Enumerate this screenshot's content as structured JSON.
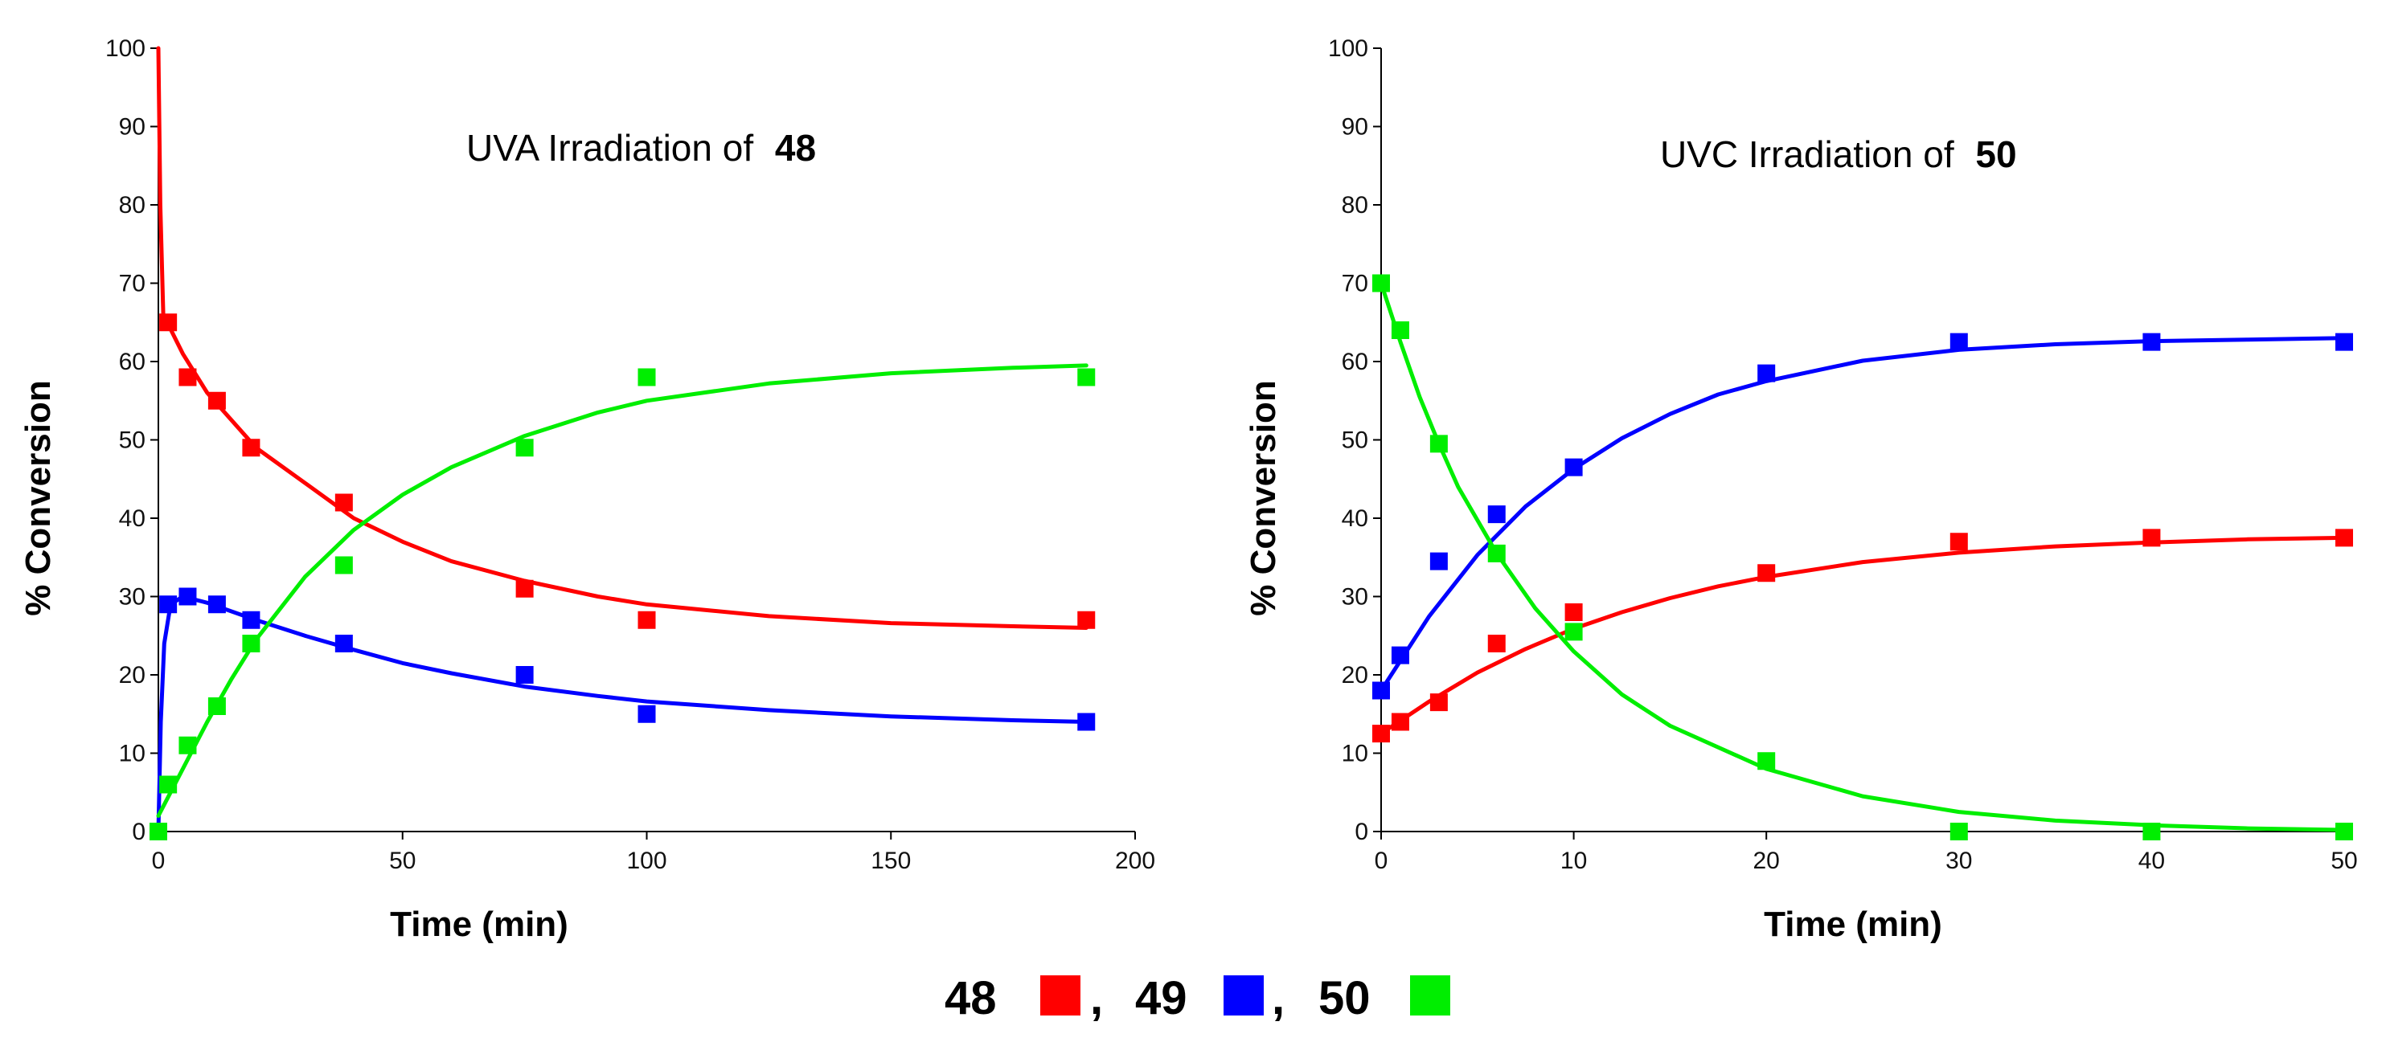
{
  "legend": {
    "items": [
      {
        "label": "48",
        "color": "#ff0000"
      },
      {
        "label": "49",
        "color": "#0000ff"
      },
      {
        "label": "50",
        "color": "#00ee00"
      }
    ],
    "separator": ","
  },
  "chart_data": [
    {
      "type": "scatter",
      "title_prefix": "UVA Irradiation of ",
      "title_bold": "48",
      "xlabel": "Time (min)",
      "ylabel": "% Conversion",
      "xlim": [
        0,
        200
      ],
      "ylim": [
        0,
        100
      ],
      "xticks": [
        0,
        50,
        100,
        150,
        200
      ],
      "yticks": [
        0,
        10,
        20,
        30,
        40,
        50,
        60,
        70,
        80,
        90,
        100
      ],
      "series": [
        {
          "name": "48",
          "color": "#ff0000",
          "points": [
            [
              2,
              65
            ],
            [
              6,
              58
            ],
            [
              12,
              55
            ],
            [
              19,
              49
            ],
            [
              38,
              42
            ],
            [
              75,
              31
            ],
            [
              100,
              27
            ],
            [
              190,
              27
            ]
          ],
          "fit": [
            [
              0,
              100
            ],
            [
              0.4,
              80
            ],
            [
              1,
              66
            ],
            [
              5,
              61
            ],
            [
              10,
              56
            ],
            [
              20,
              49
            ],
            [
              30,
              44.5
            ],
            [
              40,
              40
            ],
            [
              50,
              37
            ],
            [
              60,
              34.5
            ],
            [
              75,
              32
            ],
            [
              90,
              30
            ],
            [
              100,
              29
            ],
            [
              125,
              27.5
            ],
            [
              150,
              26.6
            ],
            [
              175,
              26.2
            ],
            [
              190,
              26
            ]
          ]
        },
        {
          "name": "49",
          "color": "#0000ff",
          "points": [
            [
              2,
              29
            ],
            [
              6,
              30
            ],
            [
              12,
              29
            ],
            [
              19,
              27
            ],
            [
              38,
              24
            ],
            [
              75,
              20
            ],
            [
              100,
              15
            ],
            [
              190,
              14
            ]
          ],
          "fit": [
            [
              0,
              0
            ],
            [
              0.5,
              14
            ],
            [
              1.2,
              24
            ],
            [
              2.5,
              29
            ],
            [
              5,
              30
            ],
            [
              10,
              29.2
            ],
            [
              20,
              27
            ],
            [
              30,
              25
            ],
            [
              40,
              23.2
            ],
            [
              50,
              21.5
            ],
            [
              60,
              20.2
            ],
            [
              75,
              18.5
            ],
            [
              90,
              17.3
            ],
            [
              100,
              16.6
            ],
            [
              125,
              15.5
            ],
            [
              150,
              14.7
            ],
            [
              175,
              14.2
            ],
            [
              190,
              14
            ]
          ]
        },
        {
          "name": "50",
          "color": "#00ee00",
          "points": [
            [
              0,
              0
            ],
            [
              2,
              6
            ],
            [
              6,
              11
            ],
            [
              12,
              16
            ],
            [
              19,
              24
            ],
            [
              38,
              34
            ],
            [
              75,
              49
            ],
            [
              100,
              58
            ],
            [
              190,
              58
            ]
          ],
          "fit": [
            [
              0,
              2
            ],
            [
              5,
              8
            ],
            [
              10,
              14
            ],
            [
              15,
              19.5
            ],
            [
              20,
              24.5
            ],
            [
              30,
              32.5
            ],
            [
              40,
              38.5
            ],
            [
              50,
              43
            ],
            [
              60,
              46.5
            ],
            [
              75,
              50.5
            ],
            [
              90,
              53.5
            ],
            [
              100,
              55
            ],
            [
              125,
              57.2
            ],
            [
              150,
              58.5
            ],
            [
              175,
              59.2
            ],
            [
              190,
              59.5
            ]
          ]
        }
      ]
    },
    {
      "type": "scatter",
      "title_prefix": "UVC Irradiation of ",
      "title_bold": "50",
      "xlabel": "Time (min)",
      "ylabel": "% Conversion",
      "xlim": [
        0,
        50
      ],
      "ylim": [
        0,
        100
      ],
      "xticks": [
        0,
        10,
        20,
        30,
        40,
        50
      ],
      "yticks": [
        0,
        10,
        20,
        30,
        40,
        50,
        60,
        70,
        80,
        90,
        100
      ],
      "series": [
        {
          "name": "48",
          "color": "#ff0000",
          "points": [
            [
              0,
              12.5
            ],
            [
              1,
              14
            ],
            [
              3,
              16.5
            ],
            [
              6,
              24
            ],
            [
              10,
              28
            ],
            [
              20,
              33
            ],
            [
              30,
              37
            ],
            [
              40,
              37.5
            ],
            [
              50,
              37.5
            ]
          ],
          "fit": [
            [
              0,
              12.5
            ],
            [
              2.5,
              16.6
            ],
            [
              5,
              20.3
            ],
            [
              7.5,
              23.3
            ],
            [
              10,
              25.9
            ],
            [
              12.5,
              28
            ],
            [
              15,
              29.8
            ],
            [
              17.5,
              31.3
            ],
            [
              20,
              32.5
            ],
            [
              25,
              34.4
            ],
            [
              30,
              35.6
            ],
            [
              35,
              36.4
            ],
            [
              40,
              36.9
            ],
            [
              45,
              37.3
            ],
            [
              50,
              37.5
            ]
          ]
        },
        {
          "name": "49",
          "color": "#0000ff",
          "points": [
            [
              0,
              18
            ],
            [
              1,
              22.5
            ],
            [
              3,
              34.5
            ],
            [
              6,
              40.5
            ],
            [
              10,
              46.5
            ],
            [
              20,
              58.5
            ],
            [
              30,
              62.5
            ],
            [
              40,
              62.5
            ],
            [
              50,
              62.5
            ]
          ],
          "fit": [
            [
              0,
              18
            ],
            [
              2.5,
              27.5
            ],
            [
              5,
              35.3
            ],
            [
              7.5,
              41.5
            ],
            [
              10,
              46.3
            ],
            [
              12.5,
              50.2
            ],
            [
              15,
              53.3
            ],
            [
              17.5,
              55.8
            ],
            [
              20,
              57.5
            ],
            [
              25,
              60.1
            ],
            [
              30,
              61.5
            ],
            [
              35,
              62.2
            ],
            [
              40,
              62.6
            ],
            [
              45,
              62.8
            ],
            [
              50,
              63
            ]
          ]
        },
        {
          "name": "50",
          "color": "#00ee00",
          "points": [
            [
              0,
              70
            ],
            [
              1,
              64
            ],
            [
              3,
              49.5
            ],
            [
              6,
              35.5
            ],
            [
              10,
              25.5
            ],
            [
              20,
              9
            ],
            [
              30,
              0
            ],
            [
              40,
              0
            ],
            [
              50,
              0
            ]
          ],
          "fit": [
            [
              0,
              70
            ],
            [
              1,
              62.5
            ],
            [
              2,
              55.5
            ],
            [
              3,
              49.5
            ],
            [
              4,
              44
            ],
            [
              6,
              35.5
            ],
            [
              8,
              28.5
            ],
            [
              10,
              23
            ],
            [
              12.5,
              17.5
            ],
            [
              15,
              13.5
            ],
            [
              20,
              8
            ],
            [
              25,
              4.5
            ],
            [
              30,
              2.5
            ],
            [
              35,
              1.4
            ],
            [
              40,
              0.8
            ],
            [
              45,
              0.4
            ],
            [
              50,
              0.2
            ]
          ]
        }
      ]
    }
  ]
}
